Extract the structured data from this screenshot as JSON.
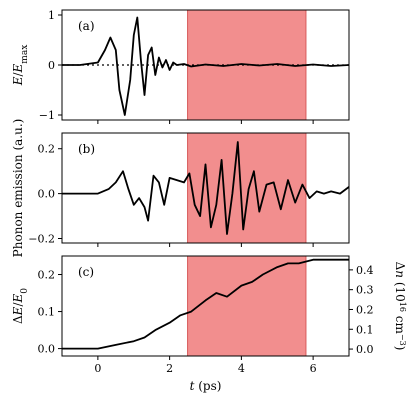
{
  "shade_color": "#f28e8e",
  "line_color": "#000000",
  "chart_data": [
    {
      "type": "line",
      "panel_label": "(a)",
      "ylabel": "E/E_max",
      "ylim": [
        -1.1,
        1.1
      ],
      "yticks": [
        1,
        0,
        -1
      ],
      "ytick_labels": [
        "1",
        "0",
        "−1"
      ],
      "xlim": [
        -1,
        7
      ],
      "xticks": [
        0,
        2,
        4,
        6
      ],
      "xtick_labels": [
        "",
        "",
        "",
        ""
      ],
      "shaded_region": [
        2.5,
        5.8
      ],
      "zero_line": "dotted",
      "series": [
        {
          "x": [
            -1.0,
            -0.5,
            0.0,
            0.2,
            0.35,
            0.5,
            0.6,
            0.75,
            0.9,
            1.0,
            1.1,
            1.2,
            1.3,
            1.4,
            1.5,
            1.6,
            1.7,
            1.8,
            1.9,
            2.0,
            2.1,
            2.2,
            2.4,
            2.6,
            3.0,
            3.5,
            4.0,
            4.5,
            5.0,
            5.5,
            6.0,
            6.5,
            7.0
          ],
          "y": [
            0.0,
            0.0,
            0.05,
            0.3,
            0.55,
            0.3,
            -0.5,
            -1.0,
            -0.3,
            0.6,
            0.95,
            0.1,
            -0.6,
            0.2,
            0.35,
            -0.2,
            0.15,
            -0.05,
            0.1,
            -0.1,
            0.05,
            0.0,
            0.02,
            -0.03,
            0.01,
            -0.02,
            0.02,
            -0.01,
            0.02,
            -0.02,
            0.01,
            -0.02,
            0.0
          ]
        }
      ]
    },
    {
      "type": "line",
      "panel_label": "(b)",
      "ylabel": "Phonon emission (a.u.)",
      "ylim": [
        -0.22,
        0.27
      ],
      "yticks": [
        0.2,
        0.0,
        -0.2
      ],
      "ytick_labels": [
        "0.2",
        "0.0",
        "−0.2"
      ],
      "xlim": [
        -1,
        7
      ],
      "xticks": [
        0,
        2,
        4,
        6
      ],
      "xtick_labels": [
        "",
        "",
        "",
        ""
      ],
      "shaded_region": [
        2.5,
        5.8
      ],
      "series": [
        {
          "x": [
            -1.0,
            -0.5,
            0.0,
            0.3,
            0.5,
            0.7,
            0.85,
            1.0,
            1.15,
            1.3,
            1.4,
            1.55,
            1.7,
            1.85,
            2.0,
            2.2,
            2.4,
            2.55,
            2.7,
            2.85,
            3.0,
            3.15,
            3.3,
            3.45,
            3.6,
            3.75,
            3.9,
            4.05,
            4.2,
            4.35,
            4.5,
            4.7,
            4.9,
            5.1,
            5.3,
            5.5,
            5.7,
            5.9,
            6.1,
            6.3,
            6.5,
            6.75,
            7.0
          ],
          "y": [
            0.0,
            0.0,
            0.0,
            0.02,
            0.05,
            0.1,
            0.02,
            -0.05,
            -0.02,
            -0.06,
            -0.12,
            0.08,
            0.05,
            -0.05,
            0.07,
            0.06,
            0.05,
            0.09,
            -0.05,
            -0.1,
            0.13,
            -0.15,
            -0.05,
            0.15,
            -0.18,
            0.0,
            0.23,
            -0.16,
            0.02,
            0.1,
            -0.08,
            0.04,
            0.05,
            -0.07,
            0.06,
            -0.04,
            0.04,
            -0.02,
            0.01,
            0.0,
            0.01,
            0.0,
            0.03
          ]
        }
      ]
    },
    {
      "type": "line",
      "panel_label": "(c)",
      "ylabel": "ΔE/E_0",
      "ylim": [
        -0.02,
        0.25
      ],
      "yticks": [
        0.2,
        0.1,
        0.0
      ],
      "ytick_labels": [
        "0.2",
        "0.1",
        "0.0"
      ],
      "ylabel_right": "Δn (10^16 cm^-3)",
      "yticks_right": [
        0.0,
        0.1,
        0.2,
        0.3,
        0.4
      ],
      "ytick_labels_right": [
        "0.0",
        "0.1",
        "0.2",
        "0.3",
        "0.4"
      ],
      "xlabel": "t (ps)",
      "xlim": [
        -1,
        7
      ],
      "xticks": [
        0,
        2,
        4,
        6
      ],
      "xtick_labels": [
        "0",
        "2",
        "4",
        "6"
      ],
      "shaded_region": [
        2.5,
        5.8
      ],
      "series": [
        {
          "x": [
            -1.0,
            -0.5,
            0.0,
            0.5,
            1.0,
            1.3,
            1.6,
            2.0,
            2.3,
            2.6,
            3.0,
            3.3,
            3.6,
            4.0,
            4.3,
            4.6,
            5.0,
            5.3,
            5.6,
            6.0,
            6.5,
            7.0
          ],
          "y": [
            0.0,
            0.0,
            0.0,
            0.01,
            0.02,
            0.03,
            0.05,
            0.07,
            0.09,
            0.1,
            0.13,
            0.15,
            0.14,
            0.17,
            0.18,
            0.2,
            0.22,
            0.23,
            0.23,
            0.24,
            0.24,
            0.24
          ]
        }
      ]
    }
  ]
}
